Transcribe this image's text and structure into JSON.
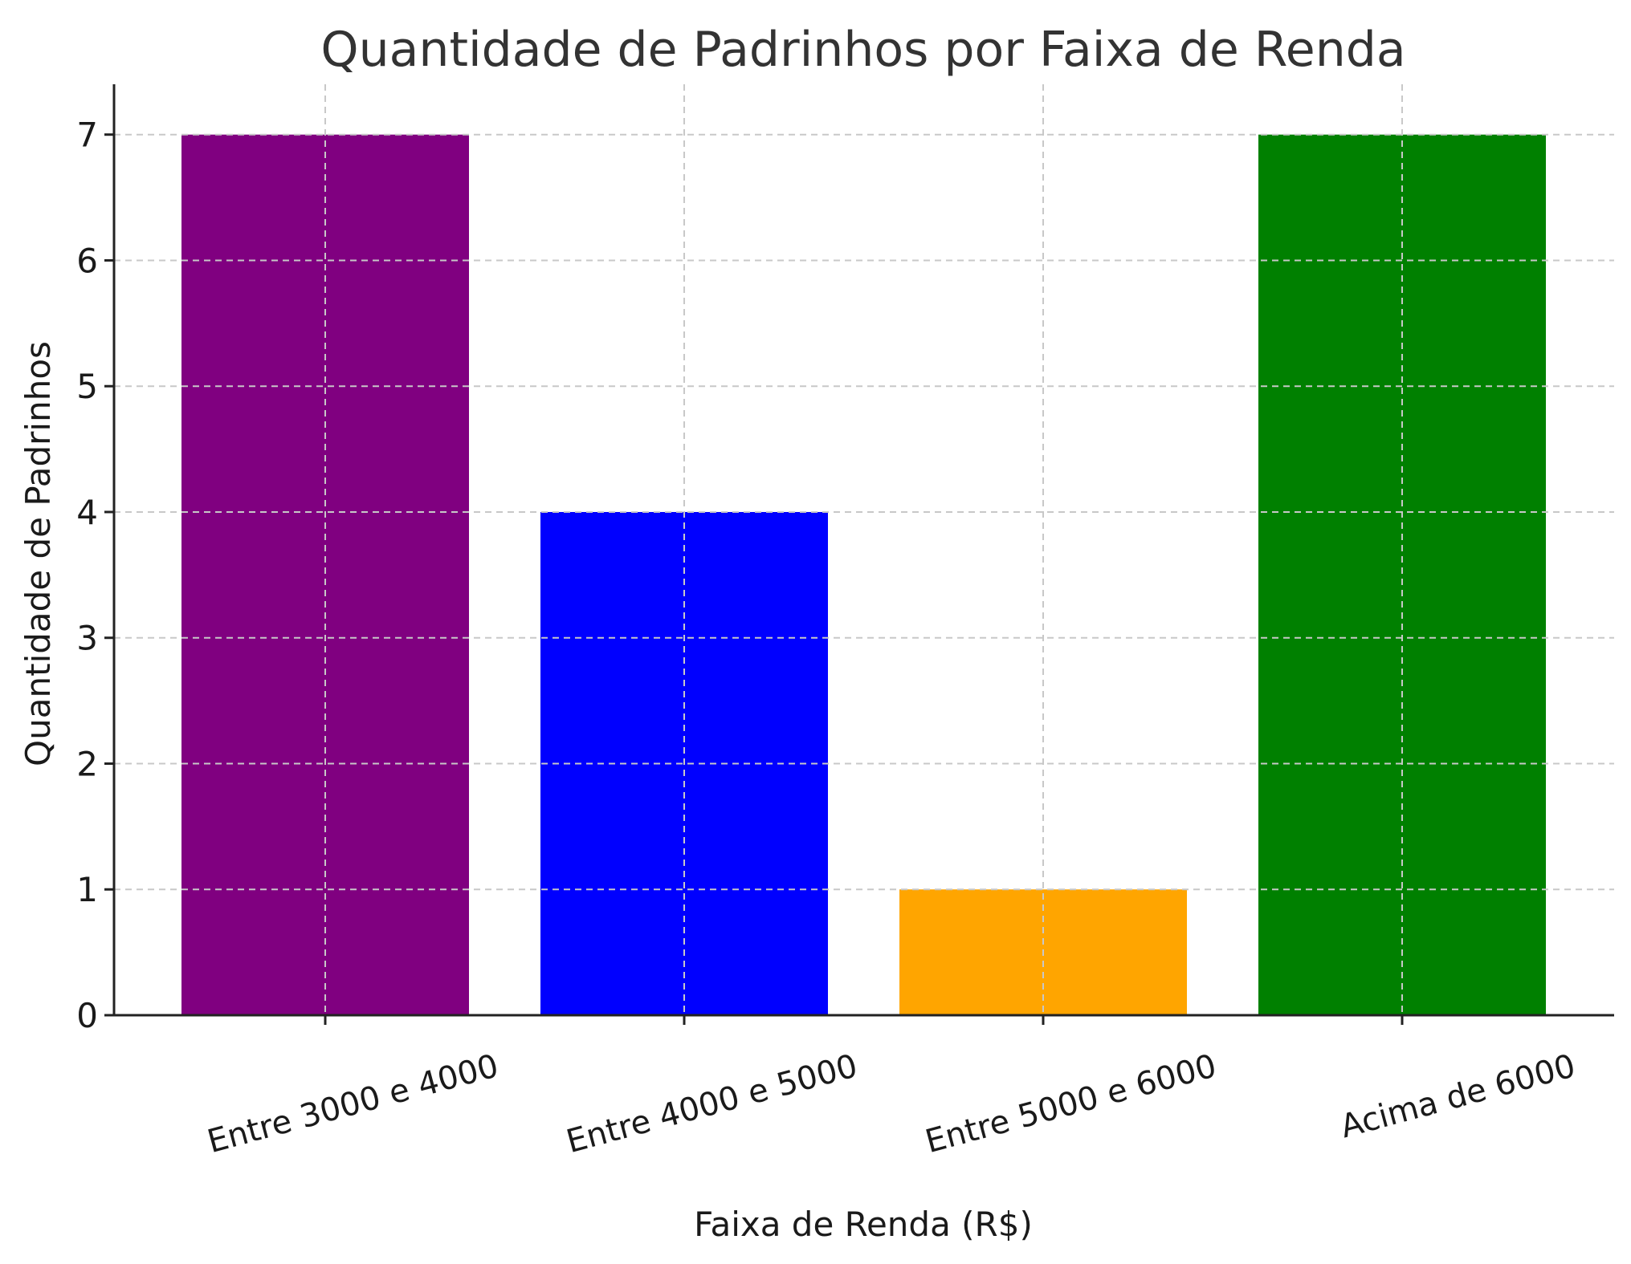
{
  "chart_data": {
    "type": "bar",
    "title": "Quantidade de Padrinhos por Faixa de Renda",
    "xlabel": "Faixa de Renda (R$)",
    "ylabel": "Quantidade de Padrinhos",
    "categories": [
      "Entre 3000 e 4000",
      "Entre 4000 e 5000",
      "Entre 5000 e 6000",
      "Acima de 6000"
    ],
    "values": [
      7,
      4,
      1,
      7
    ],
    "colors": [
      "#800080",
      "#0000ff",
      "#ffa500",
      "#008000"
    ],
    "ylim": [
      0,
      7.4
    ],
    "yticks": [
      0,
      1,
      2,
      3,
      4,
      5,
      6,
      7
    ],
    "grid": true
  }
}
